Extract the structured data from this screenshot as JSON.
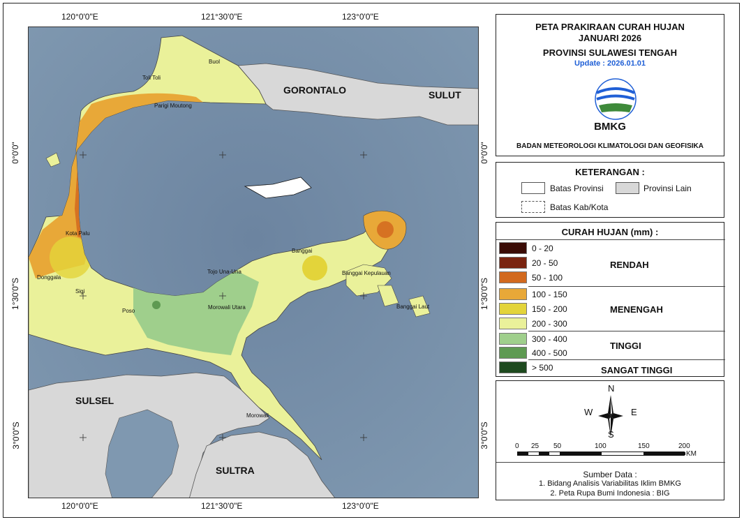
{
  "map": {
    "top_coords": [
      "120°0'0\"E",
      "121°30'0\"E",
      "123°0'0\"E"
    ],
    "bottom_coords": [
      "120°0'0\"E",
      "121°30'0\"E",
      "123°0'0\"E"
    ],
    "left_coords": [
      "0°0'0\"",
      "1°30'0\"S",
      "3°0'0\"S"
    ],
    "right_coords": [
      "0°0'0\"",
      "1°30'0\"S",
      "3°0'0\"S"
    ],
    "region_labels": {
      "gorontalo": "GORONTALO",
      "sulut": "SULUT",
      "sulsel": "SULSEL",
      "sultra": "SULTRA"
    },
    "regency_labels": {
      "buol": "Buol",
      "toli_toli": "Toli Toli",
      "parigi_moutong": "Parigi Moutong",
      "kota_palu": "Kota Palu",
      "donggala": "Donggala",
      "sigi": "Sigi",
      "poso": "Poso",
      "tojo_una_una": "Tojo Una-Una",
      "morowali_utara": "Morowali Utara",
      "banggai": "Banggai",
      "banggai_kepulauan": "Banggai Kepulauan",
      "banggai_laut": "Banggai Laut",
      "morowali": "Morowali"
    },
    "colors": {
      "sea": "#6f8aa3",
      "other_province": "#d8d8d8"
    }
  },
  "title": {
    "line1": "PETA PRAKIRAAN CURAH HUJAN",
    "line2": "JANUARI 2026",
    "line3": "PROVINSI SULAWESI TENGAH",
    "update": "Update : 2026.01.01",
    "logo_text": "BMKG",
    "agency": "BADAN METEOROLOGI KLIMATOLOGI DAN GEOFISIKA",
    "update_color": "#1f5fd6"
  },
  "legend": {
    "title": "KETERANGAN :",
    "batas_provinsi": "Batas Provinsi",
    "provinsi_lain": "Provinsi Lain",
    "batas_kab": "Batas Kab/Kota"
  },
  "rain": {
    "title": "CURAH HUJAN (mm) :",
    "classes": [
      {
        "label": "0 - 20",
        "color": "#3a0b05"
      },
      {
        "label": "20 - 50",
        "color": "#7a2410"
      },
      {
        "label": "50 - 100",
        "color": "#d2691e"
      },
      {
        "label": "100 - 150",
        "color": "#e8a838"
      },
      {
        "label": "150  - 200",
        "color": "#e3d43a"
      },
      {
        "label": "200 - 300",
        "color": "#eaf19a"
      },
      {
        "label": "300 - 400",
        "color": "#9fcf8c"
      },
      {
        "label": "400 - 500",
        "color": "#5e9a52"
      },
      {
        "label": "> 500",
        "color": "#1e4a1f"
      }
    ],
    "categories": {
      "rendah": "RENDAH",
      "menengah": "MENENGAH",
      "tinggi": "TINGGI",
      "sangat_tinggi": "SANGAT TINGGI"
    }
  },
  "compass": {
    "n": "N",
    "s": "S",
    "e": "E",
    "w": "W"
  },
  "scale": {
    "ticks": [
      "0",
      "25",
      "50",
      "100",
      "150",
      "200"
    ],
    "unit": "KM"
  },
  "source": {
    "title": "Sumber Data :",
    "line1": "1. Bidang Analisis Variabilitas Iklim BMKG",
    "line2": "2. Peta Rupa Bumi Indonesia : BIG"
  }
}
